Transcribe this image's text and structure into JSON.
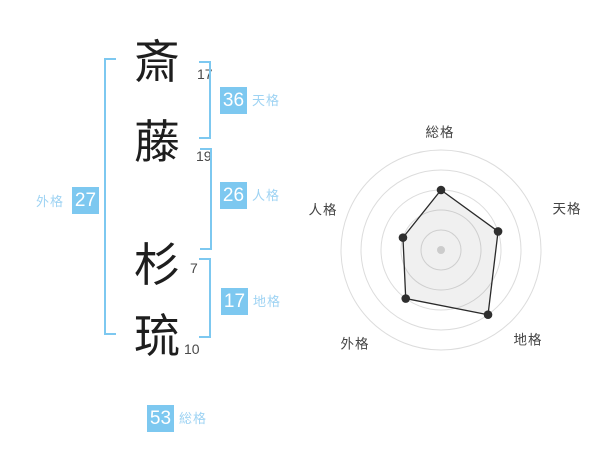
{
  "name_chars": [
    {
      "char": "斎",
      "strokes": "17"
    },
    {
      "char": "藤",
      "strokes": "19"
    },
    {
      "char": "杉",
      "strokes": "7"
    },
    {
      "char": "琉",
      "strokes": "10"
    }
  ],
  "kaku_badges": {
    "tenkaku": {
      "value": "36",
      "label": "天格"
    },
    "jinkaku": {
      "value": "26",
      "label": "人格"
    },
    "chikaku": {
      "value": "17",
      "label": "地格"
    },
    "gaikaku": {
      "value": "27",
      "label": "外格"
    },
    "soukaku": {
      "value": "53",
      "label": "総格"
    }
  },
  "colors": {
    "accent_blue": "#7dc8f0",
    "label_blue": "#9ed3f3",
    "ring_gray": "#dcdcdc",
    "ink": "#222222"
  },
  "chart_data": {
    "type": "radar",
    "categories": [
      "総格",
      "天格",
      "地格",
      "外格",
      "人格"
    ],
    "values": [
      60,
      60,
      80,
      60,
      40
    ],
    "max": 100,
    "rings": 5,
    "grid": "circular",
    "legend": "none",
    "fill_color": "rgba(0,0,0,0.06)",
    "line_color": "#2a2a2a",
    "point_color": "#2e2e2e",
    "center_dot_color": "#cccccc",
    "label_color": "#444444"
  }
}
